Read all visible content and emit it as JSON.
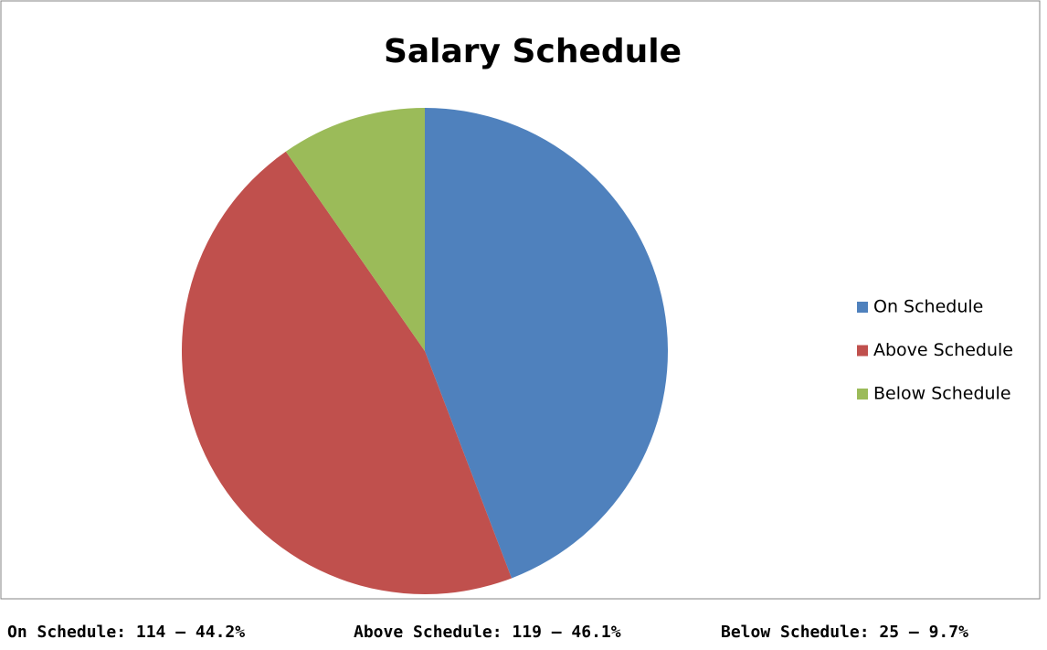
{
  "chart_data": {
    "type": "pie",
    "title": "Salary Schedule",
    "categories": [
      "On Schedule",
      "Above Schedule",
      "Below Schedule"
    ],
    "values": [
      114,
      119,
      25
    ],
    "colors": [
      "#4f81bd",
      "#c0504d",
      "#9bbb59"
    ],
    "legend": "right",
    "footer": [
      "On Schedule: 114 – 44.2%",
      "Above Schedule: 119 – 46.1%",
      "Below Schedule: 25 – 9.7%"
    ]
  }
}
